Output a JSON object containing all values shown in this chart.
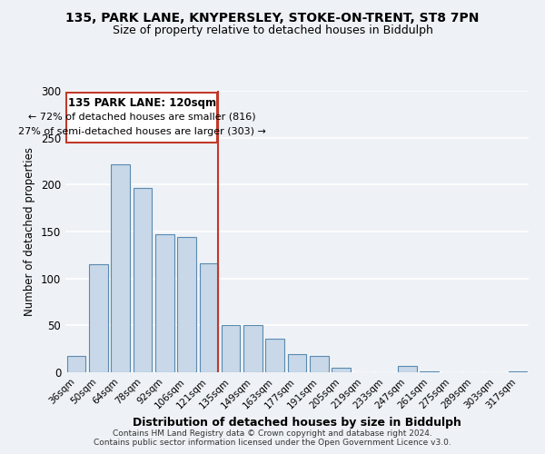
{
  "title1": "135, PARK LANE, KNYPERSLEY, STOKE-ON-TRENT, ST8 7PN",
  "title2": "Size of property relative to detached houses in Biddulph",
  "xlabel": "Distribution of detached houses by size in Biddulph",
  "ylabel": "Number of detached properties",
  "categories": [
    "36sqm",
    "50sqm",
    "64sqm",
    "78sqm",
    "92sqm",
    "106sqm",
    "121sqm",
    "135sqm",
    "149sqm",
    "163sqm",
    "177sqm",
    "191sqm",
    "205sqm",
    "219sqm",
    "233sqm",
    "247sqm",
    "261sqm",
    "275sqm",
    "289sqm",
    "303sqm",
    "317sqm"
  ],
  "values": [
    17,
    115,
    222,
    196,
    147,
    144,
    116,
    50,
    50,
    36,
    19,
    17,
    5,
    0,
    0,
    7,
    1,
    0,
    0,
    0,
    1
  ],
  "bar_color": "#c8d8e8",
  "bar_edge_color": "#5a8ab0",
  "highlight_bar_index": 6,
  "vline_color": "#c0392b",
  "box_text_line1": "135 PARK LANE: 120sqm",
  "box_text_line2": "← 72% of detached houses are smaller (816)",
  "box_text_line3": "27% of semi-detached houses are larger (303) →",
  "box_color": "#c0392b",
  "ylim": [
    0,
    300
  ],
  "yticks": [
    0,
    50,
    100,
    150,
    200,
    250,
    300
  ],
  "footer1": "Contains HM Land Registry data © Crown copyright and database right 2024.",
  "footer2": "Contains public sector information licensed under the Open Government Licence v3.0.",
  "background_color": "#eef2f6",
  "grid_color": "#ffffff"
}
